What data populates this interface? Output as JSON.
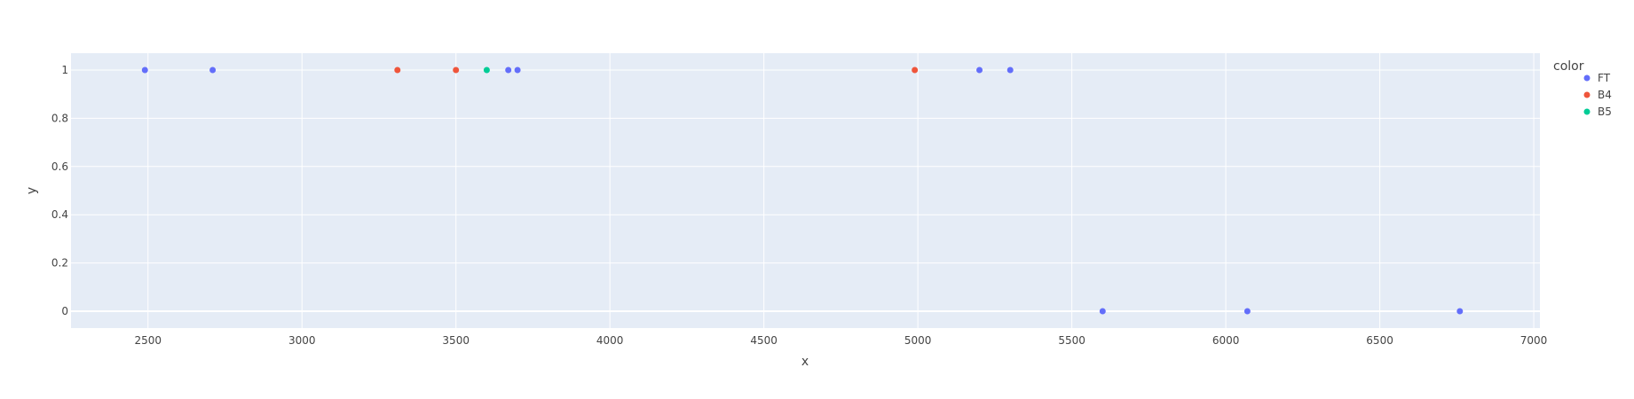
{
  "chart_data": {
    "type": "scatter",
    "title": "",
    "xlabel": "x",
    "ylabel": "y",
    "xlim": [
      2250,
      7020
    ],
    "ylim": [
      -0.07,
      1.07
    ],
    "xticks": [
      2500,
      3000,
      3500,
      4000,
      4500,
      5000,
      5500,
      6000,
      6500,
      7000
    ],
    "yticks": [
      0,
      0.2,
      0.4,
      0.6,
      0.8,
      1
    ],
    "xtick_labels": [
      "2500",
      "3000",
      "3500",
      "4000",
      "4500",
      "5000",
      "5500",
      "6000",
      "6500",
      "7000"
    ],
    "ytick_labels": [
      "0",
      "0.2",
      "0.4",
      "0.6",
      "0.8",
      "1"
    ],
    "grid": true,
    "plot_background": "#E5ECF6",
    "legend": {
      "title": "color",
      "placement": "right"
    },
    "series": [
      {
        "name": "FT",
        "color": "#636EFA",
        "points": [
          {
            "x": 2490,
            "y": 1
          },
          {
            "x": 2710,
            "y": 1
          },
          {
            "x": 3670,
            "y": 1
          },
          {
            "x": 3700,
            "y": 1
          },
          {
            "x": 5200,
            "y": 1
          },
          {
            "x": 5300,
            "y": 1
          },
          {
            "x": 5600,
            "y": 0
          },
          {
            "x": 6070,
            "y": 0
          },
          {
            "x": 6760,
            "y": 0
          }
        ]
      },
      {
        "name": "B4",
        "color": "#EF553B",
        "points": [
          {
            "x": 3310,
            "y": 1
          },
          {
            "x": 3500,
            "y": 1
          },
          {
            "x": 4990,
            "y": 1
          }
        ]
      },
      {
        "name": "B5",
        "color": "#00CC96",
        "points": [
          {
            "x": 3600,
            "y": 1
          }
        ]
      }
    ]
  }
}
